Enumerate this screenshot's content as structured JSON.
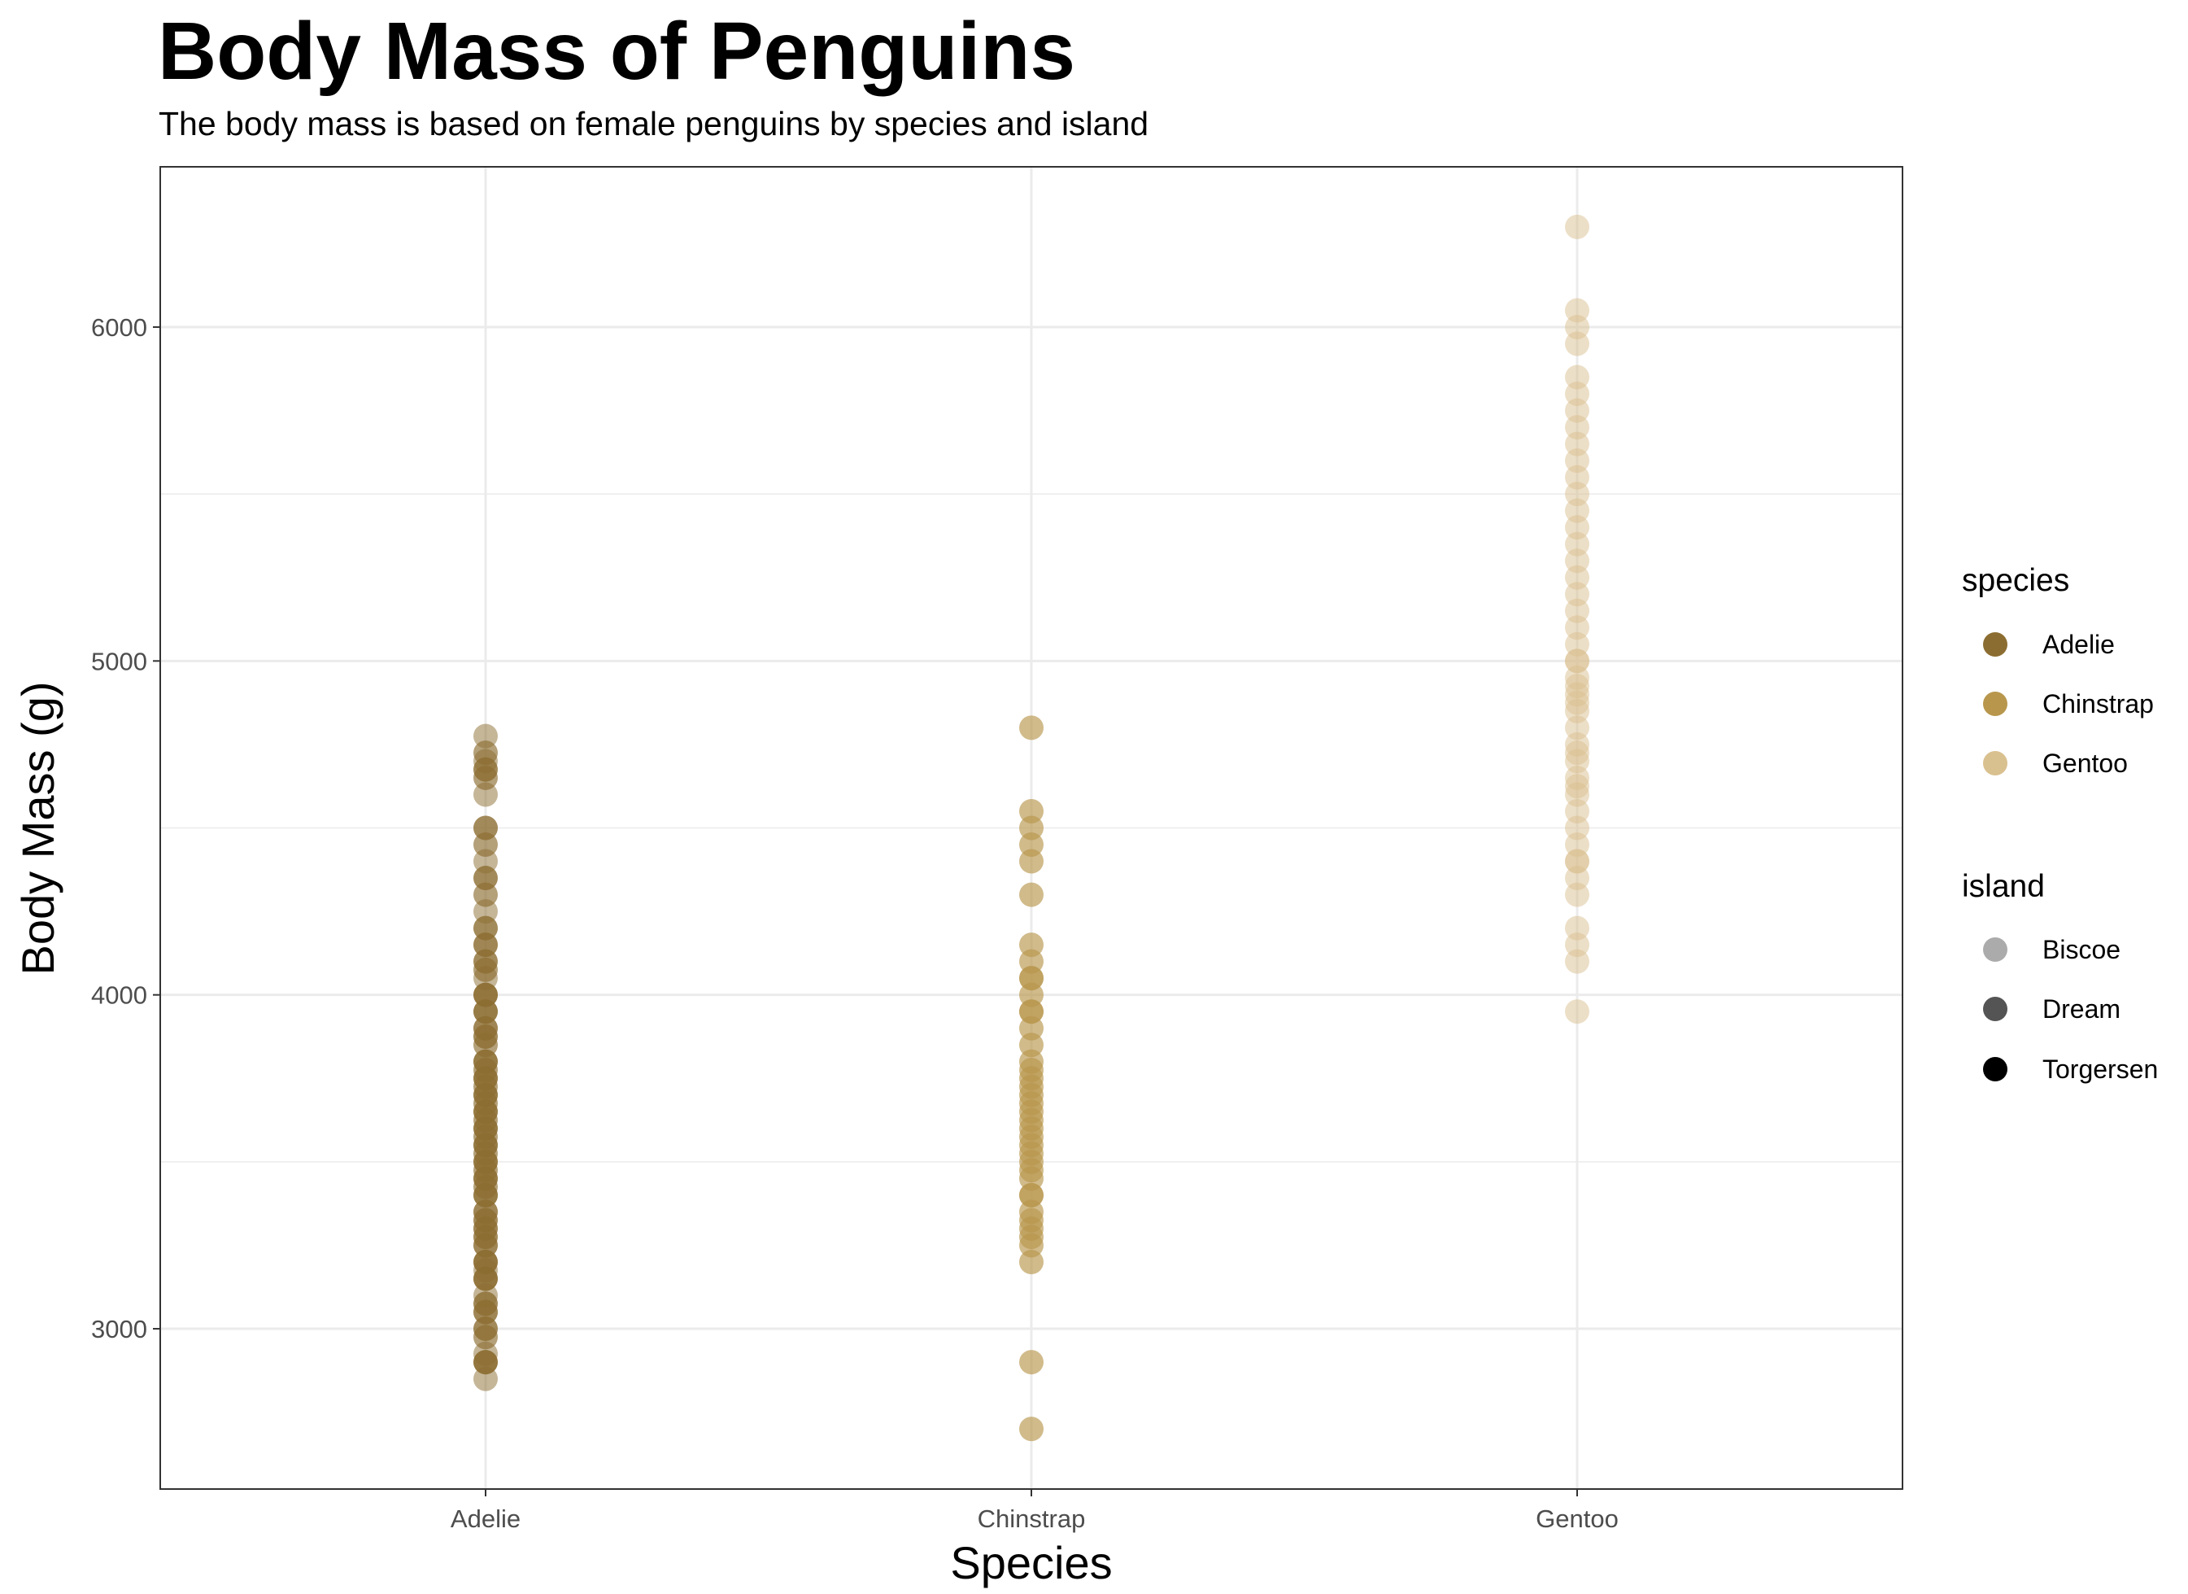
{
  "chart_data": {
    "type": "scatter",
    "title": "Body Mass of Penguins",
    "subtitle": "The body mass is based on female penguins by species and island",
    "xlabel": "Species",
    "ylabel": "Body Mass (g)",
    "categories": [
      "Adelie",
      "Chinstrap",
      "Gentoo"
    ],
    "ylim": [
      2520,
      6480
    ],
    "yticks": [
      3000,
      4000,
      5000,
      6000
    ],
    "grid": true,
    "legend_position": "right",
    "legend": {
      "species": {
        "title": "species",
        "items": [
          {
            "label": "Adelie",
            "color": "#8c6d31"
          },
          {
            "label": "Chinstrap",
            "color": "#b8974d"
          },
          {
            "label": "Gentoo",
            "color": "#d9c08f"
          }
        ]
      },
      "island": {
        "title": "island",
        "items": [
          {
            "label": "Biscoe",
            "opacity": 0.33
          },
          {
            "label": "Dream",
            "opacity": 0.67
          },
          {
            "label": "Torgersen",
            "opacity": 1.0
          }
        ]
      }
    },
    "series": [
      {
        "name": "Adelie",
        "color": "#8c6d31",
        "x": "Adelie",
        "values": [
          2850,
          2900,
          2900,
          2925,
          2975,
          3000,
          3050,
          3050,
          3075,
          3100,
          3150,
          3150,
          3175,
          3200,
          3200,
          3250,
          3250,
          3275,
          3300,
          3300,
          3325,
          3350,
          3350,
          3400,
          3400,
          3425,
          3450,
          3450,
          3475,
          3500,
          3500,
          3525,
          3550,
          3550,
          3575,
          3600,
          3600,
          3625,
          3650,
          3650,
          3675,
          3700,
          3700,
          3725,
          3750,
          3750,
          3775,
          3800,
          3800,
          3850,
          3875,
          3900,
          3900,
          3950,
          3950,
          4000,
          4000,
          4050,
          4075,
          4100,
          4150,
          4150,
          4200,
          4250,
          4300,
          4350,
          4400,
          4450,
          4500,
          4600,
          4650,
          4675,
          4700,
          4725,
          4775
        ],
        "island": [
          "Biscoe",
          "Dream",
          "Torgersen",
          "Biscoe",
          "Dream",
          "Torgersen",
          "Biscoe",
          "Dream",
          "Torgersen",
          "Biscoe",
          "Dream",
          "Torgersen",
          "Biscoe",
          "Dream",
          "Torgersen",
          "Biscoe",
          "Dream",
          "Torgersen",
          "Biscoe",
          "Dream",
          "Torgersen",
          "Biscoe",
          "Dream",
          "Torgersen",
          "Biscoe",
          "Dream",
          "Torgersen",
          "Biscoe",
          "Dream",
          "Torgersen",
          "Biscoe",
          "Dream",
          "Torgersen",
          "Biscoe",
          "Dream",
          "Torgersen",
          "Biscoe",
          "Dream",
          "Torgersen",
          "Biscoe",
          "Dream",
          "Torgersen",
          "Biscoe",
          "Dream",
          "Torgersen",
          "Biscoe",
          "Dream",
          "Torgersen",
          "Biscoe",
          "Dream",
          "Torgersen",
          "Biscoe",
          "Dream",
          "Torgersen",
          "Biscoe",
          "Dream",
          "Torgersen",
          "Biscoe",
          "Dream",
          "Torgersen",
          "Biscoe",
          "Dream",
          "Torgersen",
          "Biscoe",
          "Dream",
          "Torgersen",
          "Biscoe",
          "Dream",
          "Torgersen",
          "Biscoe",
          "Dream",
          "Torgersen",
          "Biscoe",
          "Dream",
          "Biscoe"
        ]
      },
      {
        "name": "Chinstrap",
        "color": "#b8974d",
        "x": "Chinstrap",
        "values": [
          2700,
          2900,
          3200,
          3250,
          3275,
          3300,
          3325,
          3350,
          3400,
          3400,
          3450,
          3475,
          3500,
          3525,
          3550,
          3575,
          3600,
          3625,
          3650,
          3675,
          3700,
          3725,
          3750,
          3775,
          3800,
          3850,
          3900,
          3950,
          3950,
          4000,
          4050,
          4050,
          4100,
          4150,
          4300,
          4400,
          4450,
          4500,
          4550,
          4800
        ],
        "island": [
          "Dream",
          "Dream",
          "Dream",
          "Dream",
          "Dream",
          "Dream",
          "Dream",
          "Dream",
          "Dream",
          "Dream",
          "Dream",
          "Dream",
          "Dream",
          "Dream",
          "Dream",
          "Dream",
          "Dream",
          "Dream",
          "Dream",
          "Dream",
          "Dream",
          "Dream",
          "Dream",
          "Dream",
          "Dream",
          "Dream",
          "Dream",
          "Dream",
          "Dream",
          "Dream",
          "Dream",
          "Dream",
          "Dream",
          "Dream",
          "Dream",
          "Dream",
          "Dream",
          "Dream",
          "Dream",
          "Dream"
        ]
      },
      {
        "name": "Gentoo",
        "color": "#d9c08f",
        "x": "Gentoo",
        "values": [
          3950,
          4100,
          4150,
          4200,
          4300,
          4350,
          4400,
          4400,
          4450,
          4500,
          4550,
          4600,
          4625,
          4650,
          4700,
          4725,
          4750,
          4800,
          4850,
          4875,
          4900,
          4925,
          4950,
          5000,
          5000,
          5050,
          5100,
          5150,
          5200,
          5250,
          5300,
          5350,
          5400,
          5450,
          5500,
          5550,
          5600,
          5650,
          5700,
          5750,
          5800,
          5850,
          5950,
          6000,
          6050,
          6300
        ],
        "island": [
          "Biscoe",
          "Biscoe",
          "Biscoe",
          "Biscoe",
          "Biscoe",
          "Biscoe",
          "Biscoe",
          "Biscoe",
          "Biscoe",
          "Biscoe",
          "Biscoe",
          "Biscoe",
          "Biscoe",
          "Biscoe",
          "Biscoe",
          "Biscoe",
          "Biscoe",
          "Biscoe",
          "Biscoe",
          "Biscoe",
          "Biscoe",
          "Biscoe",
          "Biscoe",
          "Biscoe",
          "Biscoe",
          "Biscoe",
          "Biscoe",
          "Biscoe",
          "Biscoe",
          "Biscoe",
          "Biscoe",
          "Biscoe",
          "Biscoe",
          "Biscoe",
          "Biscoe",
          "Biscoe",
          "Biscoe",
          "Biscoe",
          "Biscoe",
          "Biscoe",
          "Biscoe",
          "Biscoe",
          "Biscoe",
          "Biscoe",
          "Biscoe",
          "Biscoe"
        ]
      }
    ]
  }
}
